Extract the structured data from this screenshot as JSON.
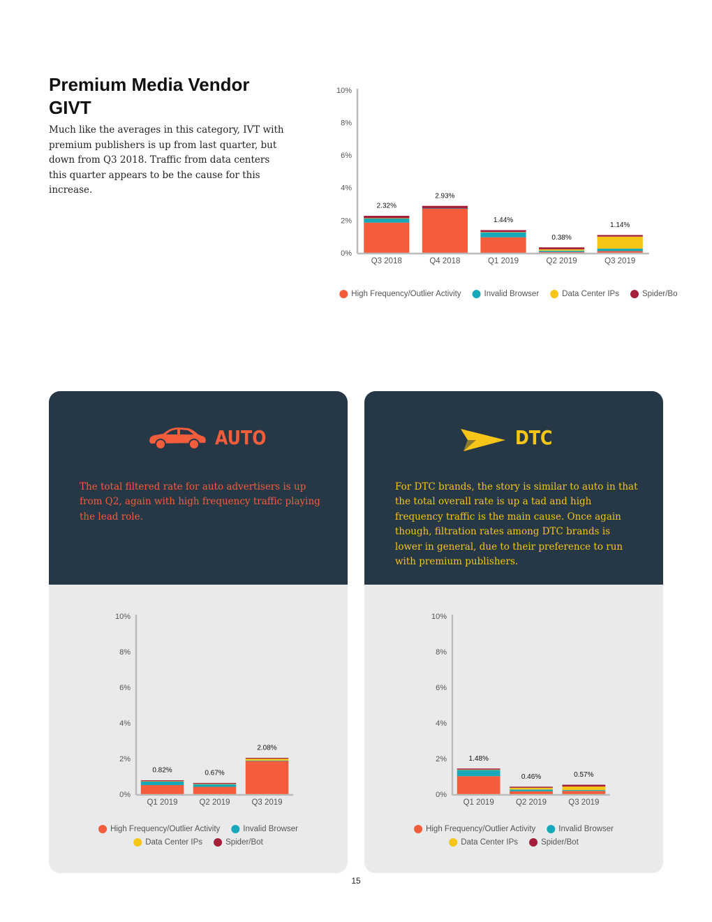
{
  "intro": {
    "title": "Premium Media Vendor GIVT",
    "body": "Much like the averages in this category, IVT with premium publishers is up from last quarter, but down from Q3 2018. Traffic from data centers this quarter appears to be the cause for this increase."
  },
  "auto": {
    "heading": "AUTO",
    "body": "The total filtered rate for auto advertisers is up from Q2, again with high frequency traffic playing the lead role."
  },
  "dtc": {
    "heading": "DTC",
    "body": "For DTC brands, the story is similar to auto in that the total overall rate is up a tad and high frequency traffic is the main cause. Once again though, filtration rates among DTC brands is lower in general, due to their preference to run with premium publishers."
  },
  "page_number": 15,
  "chart_data": [
    {
      "type": "stacked_bar",
      "categories": [
        "Q3 2018",
        "Q4 2018",
        "Q1 2019",
        "Q2 2019",
        "Q3 2019"
      ],
      "series": [
        {
          "name": "High Frequency/Outlier Activity",
          "color": "#f45d3b",
          "values": [
            1.9,
            2.75,
            1.0,
            0.1,
            0.15
          ]
        },
        {
          "name": "Invalid Browser",
          "color": "#18a9b8",
          "values": [
            0.25,
            0.02,
            0.3,
            0.08,
            0.15
          ]
        },
        {
          "name": "Data Center IPs",
          "color": "#f5c518",
          "values": [
            0.02,
            0,
            0.02,
            0.08,
            0.74
          ]
        },
        {
          "name": "Spider/Bot",
          "color": "#a4203a",
          "values": [
            0.15,
            0.16,
            0.12,
            0.12,
            0.1
          ]
        }
      ],
      "totals": [
        2.32,
        2.93,
        1.44,
        0.38,
        1.14
      ],
      "total_labels": [
        "2.32%",
        "2.93%",
        "1.44%",
        "0.38%",
        "1.14%"
      ],
      "ylim": [
        0,
        10
      ],
      "yticks": [
        {
          "value": 0,
          "label": "0%"
        },
        {
          "value": 2,
          "label": "2%"
        },
        {
          "value": 4,
          "label": "4%"
        },
        {
          "value": 6,
          "label": "6%"
        },
        {
          "value": 8,
          "label": "8%"
        },
        {
          "value": 10,
          "label": "10%"
        }
      ]
    },
    {
      "type": "stacked_bar",
      "categories": [
        "Q1 2019",
        "Q2 2019",
        "Q3 2019"
      ],
      "series": [
        {
          "name": "High Frequency/Outlier Activity",
          "color": "#f45d3b",
          "values": [
            0.55,
            0.45,
            1.9
          ]
        },
        {
          "name": "Invalid Browser",
          "color": "#18a9b8",
          "values": [
            0.2,
            0.15,
            0.03
          ]
        },
        {
          "name": "Data Center IPs",
          "color": "#f5c518",
          "values": [
            0.02,
            0.02,
            0.1
          ]
        },
        {
          "name": "Spider/Bot",
          "color": "#a4203a",
          "values": [
            0.05,
            0.05,
            0.05
          ]
        }
      ],
      "totals": [
        0.82,
        0.67,
        2.08
      ],
      "total_labels": [
        "0.82%",
        "0.67%",
        "2.08%"
      ],
      "ylim": [
        0,
        10
      ],
      "yticks": [
        {
          "value": 0,
          "label": "0%"
        },
        {
          "value": 2,
          "label": "2%"
        },
        {
          "value": 4,
          "label": "4%"
        },
        {
          "value": 6,
          "label": "6%"
        },
        {
          "value": 8,
          "label": "8%"
        },
        {
          "value": 10,
          "label": "10%"
        }
      ]
    },
    {
      "type": "stacked_bar",
      "categories": [
        "Q1 2019",
        "Q2 2019",
        "Q3 2019"
      ],
      "series": [
        {
          "name": "High Frequency/Outlier Activity",
          "color": "#f45d3b",
          "values": [
            1.05,
            0.2,
            0.22
          ]
        },
        {
          "name": "Invalid Browser",
          "color": "#18a9b8",
          "values": [
            0.35,
            0.1,
            0.05
          ]
        },
        {
          "name": "Data Center IPs",
          "color": "#f5c518",
          "values": [
            0.02,
            0.1,
            0.2
          ]
        },
        {
          "name": "Spider/Bot",
          "color": "#a4203a",
          "values": [
            0.06,
            0.06,
            0.1
          ]
        }
      ],
      "totals": [
        1.48,
        0.46,
        0.57
      ],
      "total_labels": [
        "1.48%",
        "0.46%",
        "0.57%"
      ],
      "ylim": [
        0,
        10
      ],
      "yticks": [
        {
          "value": 0,
          "label": "0%"
        },
        {
          "value": 2,
          "label": "2%"
        },
        {
          "value": 4,
          "label": "4%"
        },
        {
          "value": 6,
          "label": "6%"
        },
        {
          "value": 8,
          "label": "8%"
        },
        {
          "value": 10,
          "label": "10%"
        }
      ]
    }
  ]
}
